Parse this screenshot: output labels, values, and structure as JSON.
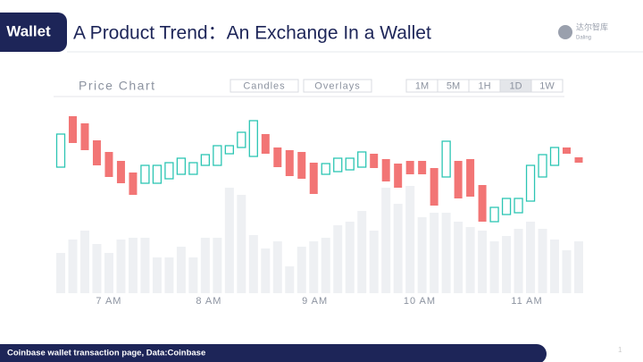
{
  "header": {
    "tag": "Wallet",
    "title": "A Product Trend：An Exchange In a Wallet"
  },
  "logo": {
    "name": "达尔智库",
    "sub": "Daling"
  },
  "footer": "Coinbase wallet transaction page, Data:Coinbase",
  "page": "1",
  "chart_data": {
    "type": "candlestick",
    "title": "Price Chart",
    "controls": [
      "Candles",
      "Overlays"
    ],
    "intervals": [
      "1M",
      "5M",
      "1H",
      "1D",
      "1W"
    ],
    "selected_interval": "1D",
    "open": [
      73,
      130,
      122,
      103,
      90,
      80,
      67,
      55,
      55,
      60,
      65,
      65,
      75,
      75,
      88,
      95,
      85,
      110,
      95,
      92,
      90,
      78,
      65,
      68,
      70,
      73,
      88,
      82,
      77,
      80,
      80,
      72,
      62,
      80,
      82,
      53,
      12,
      20,
      22,
      35,
      62,
      75,
      95,
      84
    ],
    "close": [
      110,
      100,
      92,
      75,
      62,
      55,
      42,
      75,
      75,
      78,
      83,
      78,
      87,
      97,
      97,
      112,
      125,
      88,
      73,
      63,
      60,
      43,
      77,
      83,
      83,
      90,
      72,
      57,
      50,
      65,
      65,
      30,
      102,
      38,
      40,
      12,
      28,
      38,
      38,
      75,
      87,
      95,
      88,
      78
    ],
    "volume": [
      45,
      60,
      70,
      55,
      45,
      60,
      62,
      62,
      40,
      40,
      52,
      40,
      62,
      62,
      118,
      110,
      65,
      50,
      58,
      30,
      52,
      58,
      62,
      76,
      80,
      92,
      70,
      118,
      100,
      120,
      85,
      90,
      90,
      80,
      74,
      70,
      58,
      64,
      72,
      80,
      72,
      60,
      48,
      58
    ],
    "xlim": [
      0,
      43
    ],
    "xticks": [
      {
        "value": 4,
        "label": "7 AM"
      },
      {
        "value": 12.3,
        "label": "8 AM"
      },
      {
        "value": 21.1,
        "label": "9 AM"
      },
      {
        "value": 29.8,
        "label": "10 AM"
      },
      {
        "value": 38.7,
        "label": "11 AM"
      }
    ],
    "ylim": [
      0,
      140
    ],
    "volume_lim": [
      0,
      120
    ],
    "up_color": "#2cc5b3",
    "down_color": "#f27575",
    "volume_color": "#eef0f3"
  }
}
